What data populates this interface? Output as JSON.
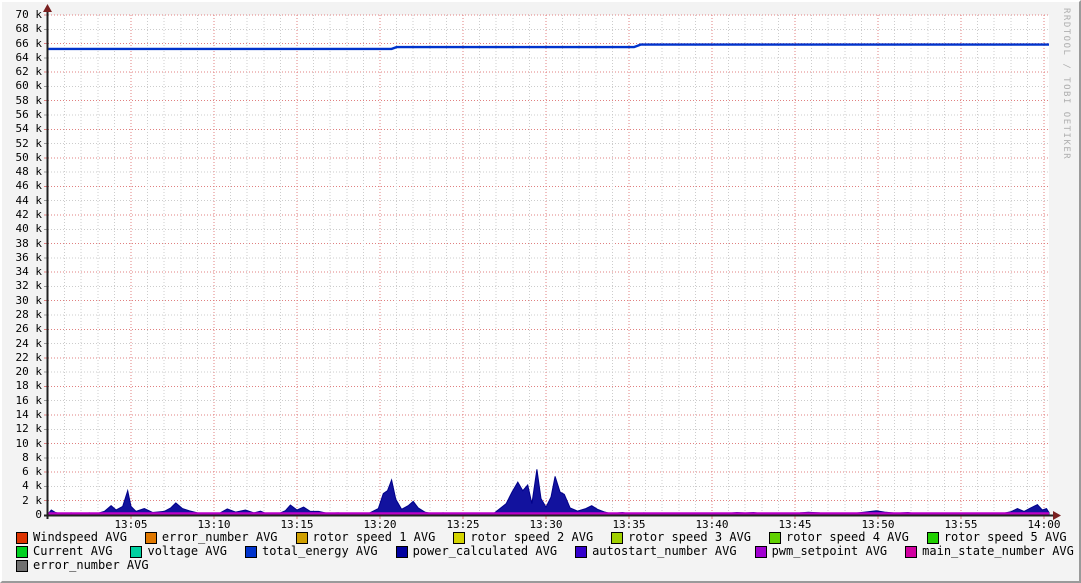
{
  "watermark": "RRDTOOL / TOBI OETIKER",
  "colors": {
    "outer_bg": "#f3f3f3",
    "plot_bg": "#ffffff",
    "grid_minor": "#cccccc",
    "grid_major": "#e08080",
    "axis": "#222222",
    "arrow": "#7a2020",
    "baseline": "#bb00c8"
  },
  "chart_data": {
    "type": "line",
    "title": "",
    "xlabel": "",
    "ylabel": "",
    "x_axis": {
      "range_minutes": [
        0,
        60.3
      ],
      "tick_interval_min": 5,
      "minor_interval_min": 1,
      "tick_labels": [
        "13:05",
        "13:10",
        "13:15",
        "13:20",
        "13:25",
        "13:30",
        "13:35",
        "13:40",
        "13:45",
        "13:50",
        "13:55",
        "14:00"
      ]
    },
    "y_axis": {
      "min": 0,
      "max": 70000,
      "step": 2000,
      "unit": "k",
      "tick_labels": [
        "70 k",
        "68 k",
        "66 k",
        "64 k",
        "62 k",
        "60 k",
        "58 k",
        "56 k",
        "54 k",
        "52 k",
        "50 k",
        "48 k",
        "46 k",
        "44 k",
        "42 k",
        "40 k",
        "38 k",
        "36 k",
        "34 k",
        "32 k",
        "30 k",
        "28 k",
        "26 k",
        "24 k",
        "22 k",
        "20 k",
        "18 k",
        "16 k",
        "14 k",
        "12 k",
        "10 k",
        "8 k",
        "6 k",
        "4 k",
        "2 k",
        "0"
      ]
    },
    "grid": true,
    "legend_position": "bottom",
    "series": [
      {
        "name": "total_energy AVG",
        "type": "line",
        "color": "#0033cc",
        "width": 2.4,
        "points_k": [
          [
            0,
            65.25
          ],
          [
            20.7,
            65.25
          ],
          [
            21.0,
            65.5
          ],
          [
            35.3,
            65.5
          ],
          [
            35.7,
            65.85
          ],
          [
            60.3,
            65.85
          ]
        ]
      },
      {
        "name": "power_calculated AVG",
        "type": "area",
        "color": "#12129e",
        "stroke": "#00008a",
        "points_k": [
          [
            0,
            0.15
          ],
          [
            0.2,
            0.7
          ],
          [
            0.45,
            0.35
          ],
          [
            0.8,
            0.15
          ],
          [
            1.4,
            0.3
          ],
          [
            1.9,
            0.15
          ],
          [
            2.5,
            0.3
          ],
          [
            2.9,
            0.15
          ],
          [
            3.4,
            0.5
          ],
          [
            3.8,
            1.3
          ],
          [
            4.1,
            0.7
          ],
          [
            4.5,
            1.2
          ],
          [
            4.8,
            3.4
          ],
          [
            5.0,
            1.2
          ],
          [
            5.3,
            0.5
          ],
          [
            5.8,
            0.9
          ],
          [
            6.3,
            0.35
          ],
          [
            7.0,
            0.5
          ],
          [
            7.4,
            1.0
          ],
          [
            7.7,
            1.7
          ],
          [
            8.1,
            0.9
          ],
          [
            8.5,
            0.6
          ],
          [
            9.0,
            0.3
          ],
          [
            9.6,
            0.1
          ],
          [
            10.3,
            0.2
          ],
          [
            10.8,
            0.85
          ],
          [
            11.3,
            0.4
          ],
          [
            11.9,
            0.7
          ],
          [
            12.4,
            0.3
          ],
          [
            12.8,
            0.55
          ],
          [
            13.2,
            0.15
          ],
          [
            13.8,
            0.1
          ],
          [
            14.3,
            0.6
          ],
          [
            14.6,
            1.4
          ],
          [
            15.0,
            0.7
          ],
          [
            15.4,
            1.1
          ],
          [
            15.8,
            0.5
          ],
          [
            16.3,
            0.5
          ],
          [
            16.8,
            0.25
          ],
          [
            17.5,
            0.3
          ],
          [
            18.1,
            0.1
          ],
          [
            19.2,
            0.08
          ],
          [
            19.9,
            0.9
          ],
          [
            20.2,
            3.0
          ],
          [
            20.45,
            3.4
          ],
          [
            20.7,
            4.9
          ],
          [
            20.95,
            2.2
          ],
          [
            21.3,
            0.8
          ],
          [
            21.7,
            1.3
          ],
          [
            22.0,
            1.9
          ],
          [
            22.3,
            1.0
          ],
          [
            22.7,
            0.4
          ],
          [
            23.2,
            0.15
          ],
          [
            23.8,
            0.3
          ],
          [
            24.5,
            0.1
          ],
          [
            25.4,
            0.25
          ],
          [
            26.1,
            0.1
          ],
          [
            26.9,
            0.3
          ],
          [
            27.6,
            1.6
          ],
          [
            27.95,
            3.2
          ],
          [
            28.3,
            4.6
          ],
          [
            28.6,
            3.4
          ],
          [
            28.9,
            4.2
          ],
          [
            29.15,
            1.6
          ],
          [
            29.45,
            6.4
          ],
          [
            29.7,
            2.3
          ],
          [
            30.0,
            1.1
          ],
          [
            30.3,
            2.5
          ],
          [
            30.55,
            5.4
          ],
          [
            30.85,
            3.2
          ],
          [
            31.1,
            2.9
          ],
          [
            31.45,
            1.0
          ],
          [
            31.9,
            0.55
          ],
          [
            32.4,
            0.9
          ],
          [
            32.75,
            1.3
          ],
          [
            33.1,
            0.8
          ],
          [
            33.5,
            0.45
          ],
          [
            33.9,
            0.2
          ],
          [
            34.6,
            0.35
          ],
          [
            35.2,
            0.1
          ],
          [
            35.9,
            0.3
          ],
          [
            36.4,
            0.12
          ],
          [
            37.5,
            0.06
          ],
          [
            38.6,
            0.12
          ],
          [
            39.6,
            0.06
          ],
          [
            40.8,
            0.2
          ],
          [
            41.5,
            0.35
          ],
          [
            42.0,
            0.28
          ],
          [
            42.5,
            0.35
          ],
          [
            43.0,
            0.2
          ],
          [
            44.0,
            0.1
          ],
          [
            44.6,
            0.25
          ],
          [
            45.3,
            0.3
          ],
          [
            45.8,
            0.38
          ],
          [
            46.5,
            0.3
          ],
          [
            47.3,
            0.25
          ],
          [
            48.0,
            0.1
          ],
          [
            48.8,
            0.3
          ],
          [
            49.4,
            0.45
          ],
          [
            49.9,
            0.6
          ],
          [
            50.4,
            0.4
          ],
          [
            51.1,
            0.25
          ],
          [
            51.8,
            0.35
          ],
          [
            52.5,
            0.12
          ],
          [
            53.5,
            0.08
          ],
          [
            54.5,
            0.12
          ],
          [
            55.5,
            0.08
          ],
          [
            56.5,
            0.2
          ],
          [
            57.4,
            0.15
          ],
          [
            58.0,
            0.45
          ],
          [
            58.4,
            0.9
          ],
          [
            58.8,
            0.5
          ],
          [
            59.2,
            1.0
          ],
          [
            59.6,
            1.45
          ],
          [
            59.9,
            0.7
          ],
          [
            60.15,
            0.9
          ],
          [
            60.3,
            0.35
          ]
        ]
      },
      {
        "name": "pwm_setpoint / main_state baseline",
        "type": "line",
        "color": "#bb00c8",
        "width": 2.2,
        "points_k": [
          [
            0,
            0
          ],
          [
            60.3,
            0
          ]
        ]
      }
    ],
    "legend_rows": [
      [
        {
          "label": "Windspeed AVG",
          "color": "#dd3300"
        },
        {
          "label": "error_number AVG",
          "color": "#e07800"
        },
        {
          "label": "rotor speed 1 AVG",
          "color": "#d0a000"
        },
        {
          "label": "rotor speed 2 AVG",
          "color": "#d4d400"
        },
        {
          "label": "rotor speed 3 AVG",
          "color": "#a0d000"
        },
        {
          "label": "rotor speed 4 AVG",
          "color": "#60d000"
        },
        {
          "label": "rotor speed 5 AVG",
          "color": "#20d000"
        }
      ],
      [
        {
          "label": "Current AVG",
          "color": "#00d020"
        },
        {
          "label": "voltage AVG",
          "color": "#00d0a0"
        },
        {
          "label": "total_energy AVG",
          "color": "#0033cc"
        },
        {
          "label": "power_calculated AVG",
          "color": "#0000a0"
        },
        {
          "label": "autostart_number AVG",
          "color": "#3300cc"
        },
        {
          "label": "pwm_setpoint AVG",
          "color": "#a000d0"
        },
        {
          "label": "main_state_number AVG",
          "color": "#d000a0"
        }
      ],
      [
        {
          "label": "error_number AVG",
          "color": "#707070"
        }
      ]
    ]
  }
}
